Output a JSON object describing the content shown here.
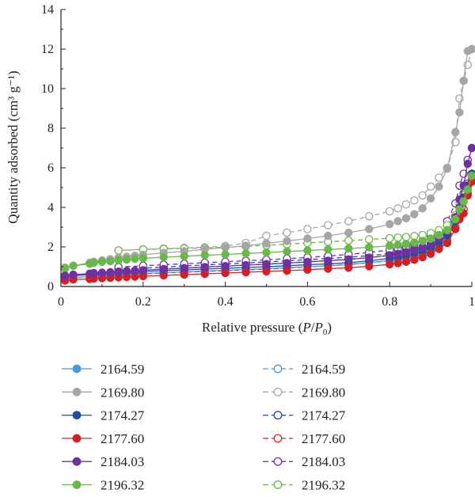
{
  "chart_data": {
    "type": "line",
    "xlabel": "Relative pressure (P/P₀)",
    "xlabel_parts": {
      "pre": "Relative pressure (",
      "p": "P",
      "slash": "/",
      "p0": "P",
      "sub": "0",
      "post": ")"
    },
    "ylabel": "Quantity adsorbed (cm³ g⁻¹)",
    "xlim": [
      0,
      1
    ],
    "ylim": [
      0,
      14
    ],
    "xticks": [
      "0",
      "0.2",
      "0.4",
      "0.6",
      "0.8",
      "1"
    ],
    "yticks": [
      "0",
      "2",
      "4",
      "6",
      "8",
      "10",
      "12",
      "14"
    ],
    "grid": false,
    "legend_position": "bottom",
    "series": [
      {
        "name": "2164.59",
        "color": "#4a9ad8",
        "style": "solid-filled",
        "x": [
          0.01,
          0.03,
          0.07,
          0.08,
          0.1,
          0.12,
          0.14,
          0.16,
          0.18,
          0.2,
          0.25,
          0.3,
          0.35,
          0.4,
          0.45,
          0.5,
          0.55,
          0.6,
          0.65,
          0.7,
          0.75,
          0.8,
          0.82,
          0.84,
          0.86,
          0.88,
          0.9,
          0.92,
          0.94,
          0.96,
          0.97,
          0.98,
          0.99,
          1.0
        ],
        "y": [
          0.4,
          0.45,
          0.5,
          0.52,
          0.55,
          0.57,
          0.6,
          0.62,
          0.64,
          0.66,
          0.7,
          0.74,
          0.78,
          0.82,
          0.86,
          0.9,
          0.95,
          1.0,
          1.05,
          1.1,
          1.2,
          1.32,
          1.38,
          1.45,
          1.55,
          1.68,
          1.85,
          2.1,
          2.5,
          3.2,
          3.9,
          4.3,
          4.9,
          5.5
        ]
      },
      {
        "name": "2169.80",
        "color": "#a6a6a6",
        "style": "solid-filled",
        "x": [
          0.01,
          0.03,
          0.07,
          0.08,
          0.1,
          0.12,
          0.14,
          0.16,
          0.18,
          0.2,
          0.25,
          0.3,
          0.35,
          0.4,
          0.45,
          0.5,
          0.55,
          0.6,
          0.65,
          0.7,
          0.75,
          0.8,
          0.82,
          0.84,
          0.86,
          0.88,
          0.9,
          0.92,
          0.94,
          0.96,
          0.97,
          0.98,
          0.99,
          1.0
        ],
        "y": [
          0.9,
          1.05,
          1.2,
          1.25,
          1.32,
          1.38,
          1.45,
          1.5,
          1.55,
          1.6,
          1.7,
          1.78,
          1.88,
          1.97,
          2.06,
          2.18,
          2.3,
          2.42,
          2.56,
          2.72,
          2.9,
          3.15,
          3.3,
          3.45,
          3.65,
          3.95,
          4.45,
          5.05,
          5.95,
          7.8,
          8.8,
          10.4,
          11.9,
          12.0
        ]
      },
      {
        "name": "2174.27",
        "color": "#1f4e9c",
        "style": "solid-filled",
        "x": [
          0.01,
          0.03,
          0.07,
          0.08,
          0.1,
          0.12,
          0.14,
          0.16,
          0.18,
          0.2,
          0.25,
          0.3,
          0.35,
          0.4,
          0.45,
          0.5,
          0.55,
          0.6,
          0.65,
          0.7,
          0.75,
          0.8,
          0.82,
          0.84,
          0.86,
          0.88,
          0.9,
          0.92,
          0.94,
          0.96,
          0.97,
          0.98,
          0.99,
          1.0
        ],
        "y": [
          0.5,
          0.55,
          0.6,
          0.62,
          0.65,
          0.67,
          0.7,
          0.72,
          0.74,
          0.76,
          0.8,
          0.84,
          0.88,
          0.92,
          0.96,
          1.0,
          1.05,
          1.1,
          1.15,
          1.2,
          1.3,
          1.42,
          1.48,
          1.55,
          1.65,
          1.78,
          1.95,
          2.2,
          2.6,
          3.3,
          4.0,
          4.5,
          5.1,
          5.7
        ]
      },
      {
        "name": "2177.60",
        "color": "#d32027",
        "style": "solid-filled",
        "x": [
          0.01,
          0.03,
          0.07,
          0.08,
          0.1,
          0.12,
          0.14,
          0.16,
          0.18,
          0.2,
          0.25,
          0.3,
          0.35,
          0.4,
          0.45,
          0.5,
          0.55,
          0.6,
          0.65,
          0.7,
          0.75,
          0.8,
          0.82,
          0.84,
          0.86,
          0.88,
          0.9,
          0.92,
          0.94,
          0.96,
          0.97,
          0.98,
          0.99,
          1.0
        ],
        "y": [
          0.3,
          0.35,
          0.38,
          0.4,
          0.42,
          0.44,
          0.46,
          0.48,
          0.5,
          0.52,
          0.56,
          0.6,
          0.64,
          0.68,
          0.72,
          0.76,
          0.8,
          0.85,
          0.9,
          0.95,
          1.02,
          1.12,
          1.18,
          1.25,
          1.35,
          1.48,
          1.65,
          1.9,
          2.2,
          2.9,
          3.4,
          3.7,
          4.6,
          5.3
        ]
      },
      {
        "name": "2184.03",
        "color": "#7030a0",
        "style": "solid-filled",
        "x": [
          0.01,
          0.03,
          0.07,
          0.08,
          0.1,
          0.12,
          0.14,
          0.16,
          0.18,
          0.2,
          0.25,
          0.3,
          0.35,
          0.4,
          0.45,
          0.5,
          0.55,
          0.6,
          0.65,
          0.7,
          0.75,
          0.8,
          0.82,
          0.84,
          0.86,
          0.88,
          0.9,
          0.92,
          0.94,
          0.96,
          0.97,
          0.98,
          0.99,
          1.0
        ],
        "y": [
          0.55,
          0.6,
          0.65,
          0.68,
          0.7,
          0.72,
          0.75,
          0.78,
          0.8,
          0.82,
          0.88,
          0.93,
          0.98,
          1.03,
          1.08,
          1.13,
          1.18,
          1.24,
          1.3,
          1.37,
          1.46,
          1.58,
          1.65,
          1.73,
          1.83,
          1.97,
          2.15,
          2.42,
          2.8,
          3.5,
          4.4,
          5.1,
          6.2,
          7.0
        ]
      },
      {
        "name": "2196.32",
        "color": "#6ab84a",
        "style": "solid-filled",
        "x": [
          0.01,
          0.03,
          0.07,
          0.08,
          0.1,
          0.12,
          0.14,
          0.16,
          0.18,
          0.2,
          0.25,
          0.3,
          0.35,
          0.4,
          0.45,
          0.5,
          0.55,
          0.6,
          0.65,
          0.7,
          0.75,
          0.8,
          0.82,
          0.84,
          0.86,
          0.88,
          0.9,
          0.92,
          0.94,
          0.96,
          0.97,
          0.98,
          0.99,
          1.0
        ],
        "y": [
          0.95,
          1.05,
          1.15,
          1.2,
          1.25,
          1.28,
          1.32,
          1.36,
          1.4,
          1.43,
          1.48,
          1.53,
          1.58,
          1.62,
          1.67,
          1.72,
          1.77,
          1.82,
          1.87,
          1.92,
          1.98,
          2.06,
          2.1,
          2.15,
          2.22,
          2.3,
          2.42,
          2.6,
          2.85,
          3.4,
          3.9,
          4.3,
          4.9,
          5.6
        ]
      },
      {
        "name": "2164.59",
        "color": "#4a9ad8",
        "style": "dashed-open",
        "x": [
          1.0,
          0.99,
          0.98,
          0.97,
          0.96,
          0.94,
          0.92,
          0.9,
          0.88,
          0.86,
          0.84,
          0.82,
          0.8,
          0.75,
          0.7,
          0.65,
          0.6,
          0.55,
          0.5,
          0.45,
          0.4,
          0.35,
          0.3,
          0.25,
          0.2,
          0.14
        ],
        "y": [
          5.5,
          5.0,
          4.6,
          4.1,
          3.4,
          2.7,
          2.3,
          2.05,
          1.9,
          1.8,
          1.7,
          1.62,
          1.56,
          1.46,
          1.38,
          1.32,
          1.26,
          1.2,
          1.14,
          1.09,
          1.04,
          0.99,
          0.94,
          0.88,
          0.83,
          0.75
        ]
      },
      {
        "name": "2169.80",
        "color": "#a6a6a6",
        "style": "dashed-open",
        "x": [
          1.0,
          0.99,
          0.98,
          0.97,
          0.96,
          0.94,
          0.92,
          0.9,
          0.88,
          0.86,
          0.84,
          0.82,
          0.8,
          0.75,
          0.7,
          0.65,
          0.6,
          0.55,
          0.5,
          0.45,
          0.4,
          0.35,
          0.3,
          0.25,
          0.2,
          0.14
        ],
        "y": [
          12.0,
          11.2,
          10.4,
          9.5,
          7.3,
          6.0,
          5.5,
          5.05,
          4.6,
          4.35,
          4.15,
          3.95,
          3.8,
          3.55,
          3.3,
          3.1,
          2.9,
          2.72,
          2.56,
          2.2,
          2.05,
          1.98,
          1.95,
          1.92,
          1.88,
          1.82
        ]
      },
      {
        "name": "2174.27",
        "color": "#1f4e9c",
        "style": "dashed-open",
        "x": [
          1.0,
          0.99,
          0.98,
          0.97,
          0.96,
          0.94,
          0.92,
          0.9,
          0.88,
          0.86,
          0.84,
          0.82,
          0.8,
          0.75,
          0.7,
          0.65,
          0.6,
          0.55,
          0.5,
          0.45,
          0.4,
          0.35,
          0.3,
          0.25,
          0.2,
          0.14
        ],
        "y": [
          5.7,
          5.2,
          4.7,
          4.2,
          3.5,
          2.8,
          2.4,
          2.15,
          2.0,
          1.9,
          1.8,
          1.72,
          1.66,
          1.56,
          1.48,
          1.42,
          1.36,
          1.3,
          1.24,
          1.19,
          1.14,
          1.09,
          1.04,
          0.98,
          0.93,
          0.85
        ]
      },
      {
        "name": "2177.60",
        "color": "#d32027",
        "style": "dashed-open",
        "x": [
          1.0,
          0.99,
          0.98,
          0.97,
          0.96,
          0.94,
          0.92,
          0.9,
          0.88,
          0.86,
          0.84,
          0.82,
          0.8,
          0.75,
          0.7,
          0.65,
          0.6,
          0.55,
          0.5,
          0.45,
          0.4,
          0.35,
          0.3,
          0.25,
          0.2,
          0.14
        ],
        "y": [
          5.3,
          4.7,
          3.9,
          3.5,
          3.0,
          2.35,
          2.0,
          1.78,
          1.62,
          1.52,
          1.44,
          1.37,
          1.3,
          1.2,
          1.12,
          1.05,
          0.99,
          0.93,
          0.88,
          0.84,
          0.8,
          0.76,
          0.72,
          0.68,
          0.64,
          0.58
        ]
      },
      {
        "name": "2184.03",
        "color": "#7030a0",
        "style": "dashed-open",
        "x": [
          1.0,
          0.99,
          0.98,
          0.97,
          0.96,
          0.94,
          0.92,
          0.9,
          0.88,
          0.86,
          0.84,
          0.82,
          0.8,
          0.75,
          0.7,
          0.65,
          0.6,
          0.55,
          0.5,
          0.45,
          0.4,
          0.35,
          0.3,
          0.25,
          0.2,
          0.14
        ],
        "y": [
          7.0,
          6.4,
          5.7,
          5.1,
          4.2,
          3.3,
          2.8,
          2.5,
          2.3,
          2.15,
          2.03,
          1.93,
          1.85,
          1.72,
          1.62,
          1.54,
          1.47,
          1.41,
          1.35,
          1.3,
          1.25,
          1.2,
          1.15,
          1.1,
          1.05,
          0.98
        ]
      },
      {
        "name": "2196.32",
        "color": "#6ab84a",
        "style": "dashed-open",
        "x": [
          1.0,
          0.99,
          0.98,
          0.97,
          0.96,
          0.94,
          0.92,
          0.9,
          0.88,
          0.86,
          0.84,
          0.82,
          0.8,
          0.75,
          0.7,
          0.65,
          0.6,
          0.55,
          0.5,
          0.45,
          0.4,
          0.35,
          0.3,
          0.25,
          0.2,
          0.14
        ],
        "y": [
          5.6,
          5.1,
          4.6,
          4.2,
          3.6,
          3.1,
          2.85,
          2.7,
          2.6,
          2.55,
          2.5,
          2.47,
          2.44,
          2.38,
          2.32,
          2.26,
          2.2,
          2.14,
          2.08,
          2.03,
          1.98,
          1.95,
          1.93,
          1.9,
          1.87,
          1.82
        ]
      }
    ]
  }
}
